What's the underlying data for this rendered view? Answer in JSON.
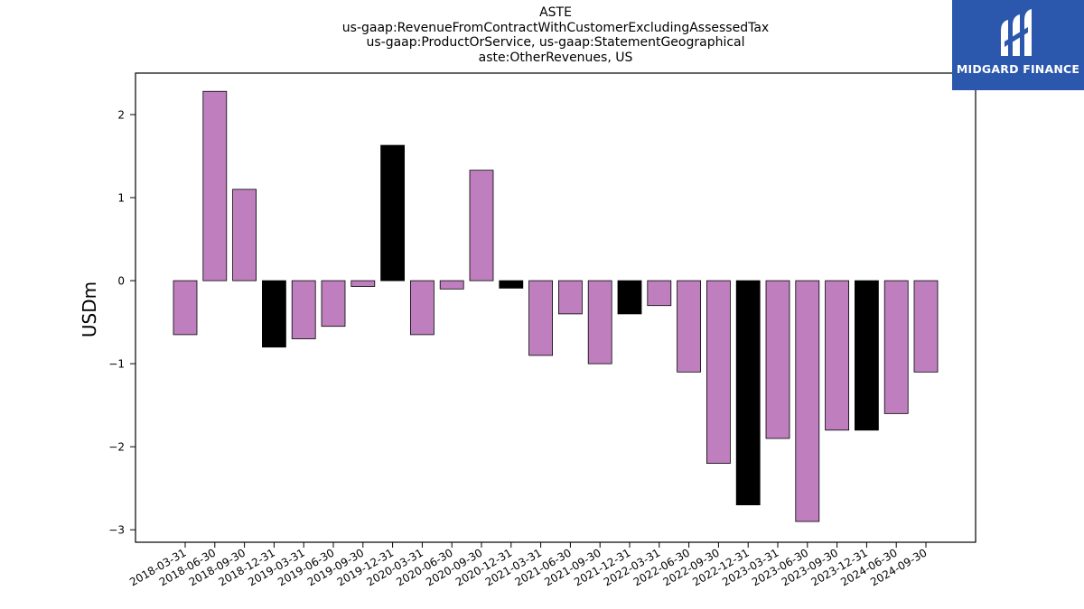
{
  "title_lines": [
    "ASTE",
    "us-gaap:RevenueFromContractWithCustomerExcludingAssessedTax",
    "us-gaap:ProductOrService, us-gaap:StatementGeographical",
    "aste:OtherRevenues, US"
  ],
  "logo": {
    "text": "MIDGARD FINANCE",
    "background": "#2b57ad"
  },
  "colors": {
    "quarter_bar": "#bf7fbf",
    "year_end_bar": "#000000",
    "edge": "#000000"
  },
  "chart_data": {
    "type": "bar",
    "ylabel": "USDm",
    "ylim": [
      -3.15,
      2.5
    ],
    "yticks": [
      2,
      1,
      0,
      -1,
      -2,
      -3
    ],
    "ytick_labels": [
      "2",
      "1",
      "0",
      "−1",
      "−2",
      "−3"
    ],
    "categories": [
      "2018-03-31",
      "2018-06-30",
      "2018-09-30",
      "2018-12-31",
      "2019-03-31",
      "2019-06-30",
      "2019-09-30",
      "2019-12-31",
      "2020-03-31",
      "2020-06-30",
      "2020-09-30",
      "2020-12-31",
      "2021-03-31",
      "2021-06-30",
      "2021-09-30",
      "2021-12-31",
      "2022-03-31",
      "2022-06-30",
      "2022-09-30",
      "2022-12-31",
      "2023-03-31",
      "2023-06-30",
      "2023-09-30",
      "2023-12-31",
      "2024-06-30",
      "2024-09-30"
    ],
    "values": [
      -0.65,
      2.28,
      1.1,
      -0.8,
      -0.7,
      -0.55,
      -0.07,
      1.63,
      -0.65,
      -0.1,
      1.33,
      -0.09,
      -0.9,
      -0.4,
      -1.0,
      -0.4,
      -0.3,
      -1.1,
      -2.2,
      -2.7,
      -1.9,
      -2.9,
      -1.8,
      -1.8,
      -1.6,
      -1.1
    ],
    "year_end": [
      false,
      false,
      false,
      true,
      false,
      false,
      false,
      true,
      false,
      false,
      false,
      true,
      false,
      false,
      false,
      true,
      false,
      false,
      false,
      true,
      false,
      false,
      false,
      true,
      false,
      false
    ],
    "grid": false,
    "legend": "none"
  }
}
